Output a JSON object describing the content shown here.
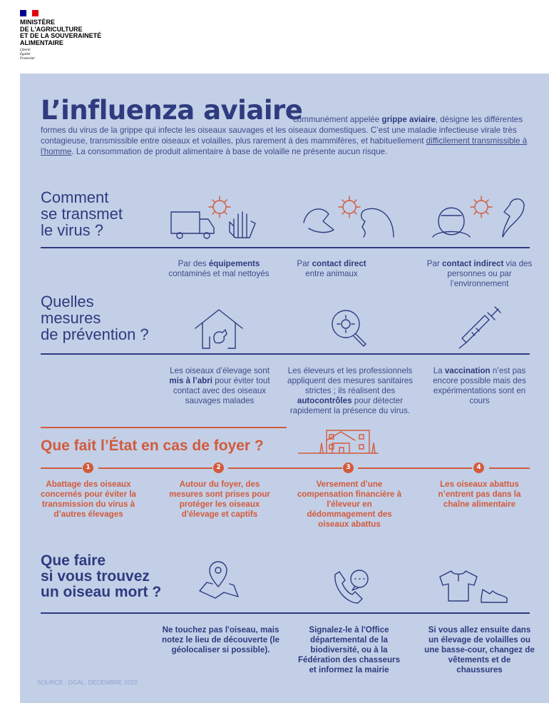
{
  "logo": {
    "flag_colors": [
      "#000091",
      "#ffffff",
      "#e1000f"
    ],
    "ministry": [
      "MINISTÈRE",
      "DE L'AGRICULTURE",
      "ET DE LA SOUVERAINETÉ",
      "ALIMENTAIRE"
    ],
    "motto": [
      "Liberté",
      "Égalité",
      "Fraternité"
    ]
  },
  "colors": {
    "background": "#c3cfe7",
    "navy": "#2e3b7e",
    "orange": "#d25b3c"
  },
  "header": {
    "title": "L’influenza aviaire",
    "intro_1": "communément appelée ",
    "intro_bold": "grippe aviaire",
    "intro_2": ", désigne les différentes formes du virus de la grippe qui infecte les oiseaux sauvages et les oiseaux domestiques. C’est une maladie infectieuse virale très contagieuse, transmissible entre oiseaux et volailles, plus rarement à des mammifères, et habituellement ",
    "intro_link": "difficilement transmissible à l'homme",
    "intro_3": ". La consommation de produit alimentaire à base de volaille ne présente aucun risque."
  },
  "transmission": {
    "heading": [
      "Comment",
      "se transmet",
      "le virus ?"
    ],
    "items": [
      {
        "pre": "Par des ",
        "bold": "équipements",
        "post": " contaminés et mal nettoyés",
        "icons": [
          "truck-icon",
          "virus-icon",
          "glove-icon"
        ]
      },
      {
        "pre": "Par ",
        "bold": "contact direct",
        "post": " entre animaux",
        "icons": [
          "duck-icon",
          "virus-icon",
          "chicken-icon"
        ]
      },
      {
        "pre": "Par ",
        "bold": "contact indirect",
        "post": " via des personnes ou par l’environnement",
        "icons": [
          "person-icon",
          "virus-icon",
          "bird-icon"
        ]
      }
    ]
  },
  "prevention": {
    "heading": [
      "Quelles",
      "mesures",
      "de prévention ?"
    ],
    "items": [
      {
        "pre": "Les oiseaux d’élevage sont ",
        "bold": "mis à l’abri",
        "post": " pour éviter tout contact avec des oiseaux sauvages malades",
        "icon": "henhouse-icon"
      },
      {
        "pre": "Les éleveurs et les professionnels appliquent des mesures sanitaires strictes ; ils réalisent des ",
        "bold": "autocontrôles",
        "post": " pour détecter rapidement la présence du virus.",
        "icon": "magnifier-virus-icon"
      },
      {
        "pre": "La ",
        "bold": "vaccination",
        "post": " n’est pas encore possible mais des expérimentations sont en cours",
        "icon": "syringe-icon"
      }
    ]
  },
  "state": {
    "heading": "Que fait l’État en cas de foyer ?",
    "steps": [
      {
        "num": "1",
        "text": "Abattage des oiseaux concernés pour éviter la transmission du virus à d’autres élevages"
      },
      {
        "num": "2",
        "text": "Autour du foyer, des mesures sont prises pour protéger les oiseaux d'élevage et captifs"
      },
      {
        "num": "3",
        "text": "Versement d’une compensation financière à l'éleveur en dédommagement des oiseaux abattus"
      },
      {
        "num": "4",
        "text": "Les oiseaux abattus n’entrent pas dans la chaîne alimentaire"
      }
    ]
  },
  "dead_bird": {
    "heading": [
      "Que faire",
      "si vous trouvez",
      "un oiseau mort ?"
    ],
    "items": [
      {
        "text": "Ne touchez pas l'oiseau, mais notez le lieu de découverte (le géolocaliser si possible).",
        "icon": "map-pin-icon"
      },
      {
        "text": "Signalez-le à l'Office départemental de la biodiversité, ou à la Fédération des chasseurs et informez la mairie",
        "icon": "phone-icon"
      },
      {
        "text": "Si vous allez ensuite dans un élevage de volailles ou une basse-cour, changez de vêtements et de chaussures",
        "icon": "clothes-icon"
      }
    ]
  },
  "source": "SOURCE : DGAL, DÉCEMBRE 2022."
}
